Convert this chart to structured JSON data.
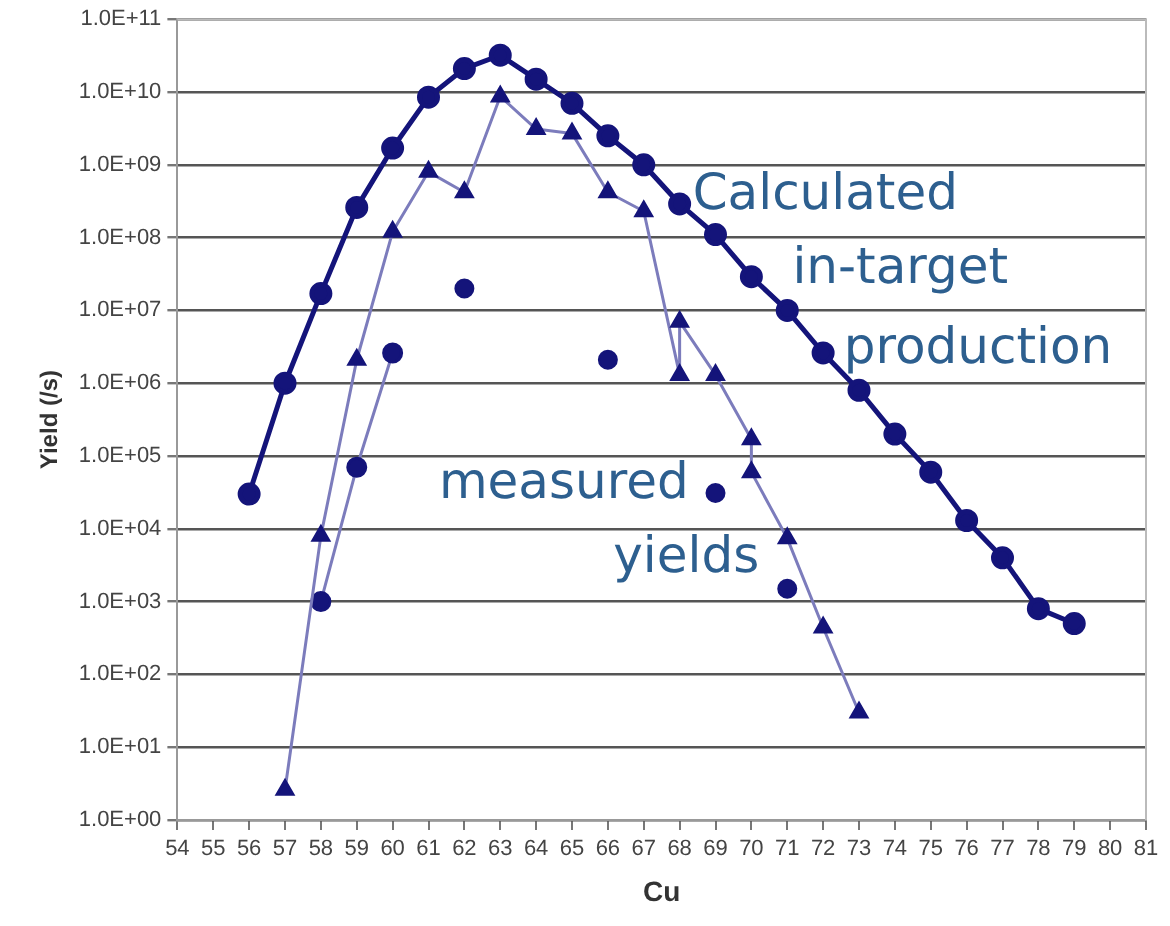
{
  "chart_data": {
    "type": "line",
    "xlabel": "Cu",
    "ylabel": "Yield (/s)",
    "log": "y",
    "grid": "y",
    "legend": false,
    "xlim": [
      54,
      81
    ],
    "xticks": [
      54,
      55,
      56,
      57,
      58,
      59,
      60,
      61,
      62,
      63,
      64,
      65,
      66,
      67,
      68,
      69,
      70,
      71,
      72,
      73,
      74,
      75,
      76,
      77,
      78,
      79,
      80,
      81
    ],
    "ylim": [
      1,
      100000000000
    ],
    "yticks": [
      {
        "value": 1,
        "label": "1.0E+00"
      },
      {
        "value": 10,
        "label": "1.0E+01"
      },
      {
        "value": 100,
        "label": "1.0E+02"
      },
      {
        "value": 1000,
        "label": "1.0E+03"
      },
      {
        "value": 10000,
        "label": "1.0E+04"
      },
      {
        "value": 100000,
        "label": "1.0E+05"
      },
      {
        "value": 1000000,
        "label": "1.0E+06"
      },
      {
        "value": 10000000,
        "label": "1.0E+07"
      },
      {
        "value": 100000000,
        "label": "1.0E+08"
      },
      {
        "value": 1000000000,
        "label": "1.0E+09"
      },
      {
        "value": 10000000000,
        "label": "1.0E+10"
      },
      {
        "value": 100000000000,
        "label": "1.0E+11"
      }
    ],
    "series": [
      {
        "color": "#14147a",
        "marker": "circle",
        "x": [
          56,
          57,
          58,
          59,
          60,
          61,
          62,
          63,
          64,
          65,
          66,
          67,
          68,
          69,
          70,
          71,
          72,
          73,
          74,
          75,
          76,
          77,
          78,
          79
        ],
        "values": [
          30000,
          1000000,
          17000000,
          260000000,
          1700000000,
          8500000000,
          21000000000,
          32000000000,
          15000000000,
          7000000000,
          2500000000,
          1000000000,
          290000000,
          110000000,
          29000000,
          10000000,
          2600000,
          800000,
          200000,
          60000,
          13000,
          4000,
          800,
          500
        ]
      },
      {
        "color": "#7c7cbc",
        "marker": "triangle",
        "x": [
          57,
          58,
          59,
          60,
          61,
          62,
          63,
          64,
          65,
          66,
          67,
          68,
          68,
          69,
          70,
          70,
          71,
          72,
          73
        ],
        "values": [
          2.6,
          8000,
          2100000,
          120000000,
          800000000,
          420000000,
          8700000000,
          3100000000,
          2700000000,
          420000000,
          230000000,
          1300000,
          7000000,
          1300000,
          170000,
          60000,
          7400,
          440,
          30
        ]
      },
      {
        "color": "#7c7cbc",
        "marker": "circle",
        "x": [
          58,
          59,
          60
        ],
        "values": [
          1000,
          70000,
          2600000
        ]
      },
      {
        "type": "scatter",
        "color": "#14147a",
        "marker": "circle",
        "x": [
          62,
          66,
          69,
          71
        ],
        "values": [
          20000000,
          2100000,
          31000,
          1500
        ]
      }
    ],
    "annotations": [
      "Calculated",
      "in-target",
      "production",
      "measured",
      "yields"
    ]
  }
}
